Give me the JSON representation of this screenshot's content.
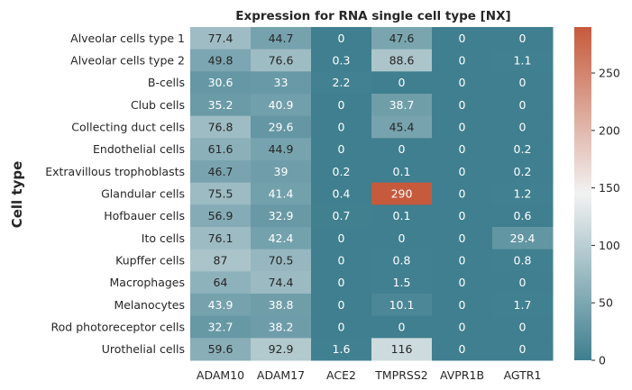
{
  "chart_data": {
    "type": "heatmap",
    "title": "Expression for RNA single cell type [NX]",
    "xlabel": "",
    "ylabel": "Cell type",
    "columns": [
      "ADAM10",
      "ADAM17",
      "ACE2",
      "TMPRSS2",
      "AVPR1B",
      "AGTR1"
    ],
    "rows": [
      "Alveolar cells type 1",
      "Alveolar cells type 2",
      "B-cells",
      "Club cells",
      "Collecting duct cells",
      "Endothelial cells",
      "Extravillous trophoblasts",
      "Glandular cells",
      "Hofbauer cells",
      "Ito cells",
      "Kupffer cells",
      "Macrophages",
      "Melanocytes",
      "Rod photoreceptor cells",
      "Urothelial cells"
    ],
    "values": [
      [
        77.4,
        44.7,
        0,
        47.6,
        0,
        0
      ],
      [
        49.8,
        76.6,
        0.3,
        88.6,
        0,
        1.1
      ],
      [
        30.6,
        33,
        2.2,
        0,
        0,
        0
      ],
      [
        35.2,
        40.9,
        0,
        38.7,
        0,
        0
      ],
      [
        76.8,
        29.6,
        0,
        45.4,
        0,
        0
      ],
      [
        61.6,
        44.9,
        0,
        0,
        0,
        0.2
      ],
      [
        46.7,
        39,
        0.2,
        0.1,
        0,
        0.2
      ],
      [
        75.5,
        41.4,
        0.4,
        290,
        0,
        1.2
      ],
      [
        56.9,
        32.9,
        0.7,
        0.1,
        0,
        0.6
      ],
      [
        76.1,
        42.4,
        0,
        0,
        0,
        29.4
      ],
      [
        87,
        70.5,
        0,
        0.8,
        0,
        0.8
      ],
      [
        64,
        74.4,
        0,
        1.5,
        0,
        0
      ],
      [
        43.9,
        38.8,
        0,
        10.1,
        0,
        1.7
      ],
      [
        32.7,
        38.2,
        0,
        0,
        0,
        0
      ],
      [
        59.6,
        92.9,
        1.6,
        116,
        0,
        0
      ]
    ],
    "colorbar": {
      "range": [
        0,
        290
      ],
      "ticks": [
        0,
        50,
        100,
        150,
        200,
        250
      ],
      "colors": {
        "low": "#3f7f8f",
        "mid": "#f2f2f2",
        "high": "#c65a3c"
      }
    },
    "grid": false,
    "legend": "colorbar-right"
  }
}
